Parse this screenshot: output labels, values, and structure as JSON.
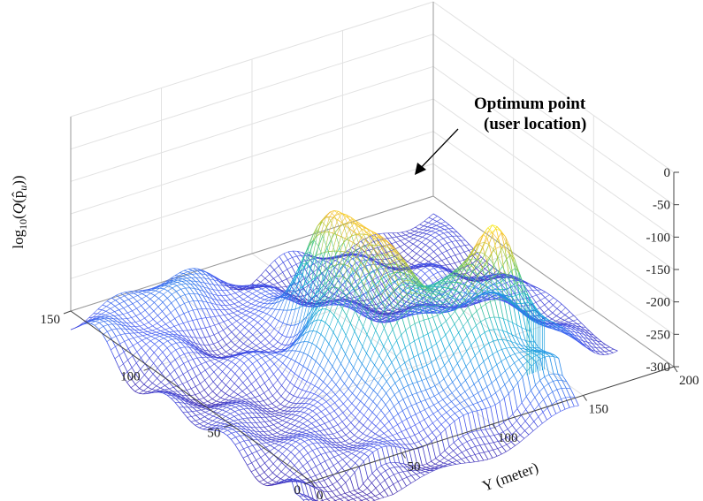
{
  "chart_data": {
    "type": "surface3d",
    "x_axis": {
      "label": "",
      "range": [
        0,
        150
      ],
      "ticks": [
        0,
        50,
        100,
        150
      ]
    },
    "y_axis": {
      "label": "Y (meter)",
      "range": [
        0,
        200
      ],
      "ticks": [
        0,
        50,
        100,
        150,
        200
      ]
    },
    "z_axis": {
      "label": "log10(Q(p̂u))",
      "range": [
        -300,
        0
      ],
      "ticks": [
        0,
        -50,
        -100,
        -150,
        -200,
        -250,
        -300
      ]
    },
    "grid": true,
    "colormap": "parula",
    "annotation": {
      "line1": "Optimum point",
      "line2": "(user location)"
    },
    "peak": {
      "x": 40,
      "y": 140,
      "z": -100
    }
  }
}
